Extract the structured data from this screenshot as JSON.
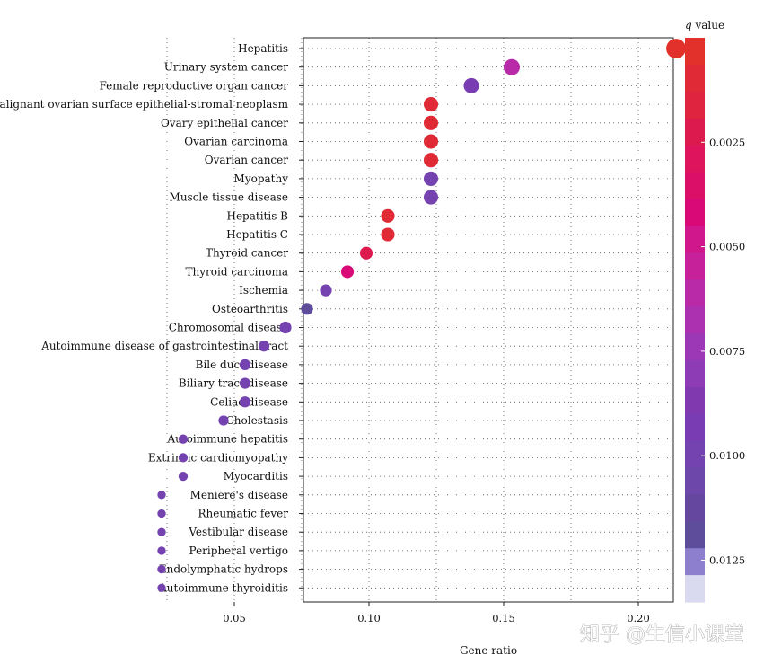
{
  "chart_data": {
    "type": "scatter",
    "subtype": "dot-plot",
    "xlabel": "Gene ratio",
    "xlim": [
      0.01,
      0.22
    ],
    "xticks": [
      0.05,
      0.1,
      0.15,
      0.2
    ],
    "xtick_labels": [
      "0.05",
      "0.10",
      "0.15",
      "0.20"
    ],
    "grid": true,
    "categories": [
      "Hepatitis",
      "Urinary system cancer",
      "Female reproductive organ cancer",
      "Malignant ovarian surface epithelial-stromal neoplasm",
      "Ovary epithelial cancer",
      "Ovarian carcinoma",
      "Ovarian cancer",
      "Myopathy",
      "Muscle tissue disease",
      "Hepatitis B",
      "Hepatitis C",
      "Thyroid cancer",
      "Thyroid carcinoma",
      "Ischemia",
      "Osteoarthritis",
      "Chromosomal disease",
      "Autoimmune disease of gastrointestinal tract",
      "Bile duct disease",
      "Biliary tract disease",
      "Celiac disease",
      "Cholestasis",
      "Autoimmune hepatitis",
      "Extrinsic cardiomyopathy",
      "Myocarditis",
      "Meniere's disease",
      "Rheumatic fever",
      "Vestibular disease",
      "Peripheral vertigo",
      "Endolymphatic hydrops",
      "Autoimmune thyroiditis"
    ],
    "gene_ratio": [
      0.214,
      0.153,
      0.138,
      0.123,
      0.123,
      0.123,
      0.123,
      0.123,
      0.123,
      0.107,
      0.107,
      0.099,
      0.092,
      0.084,
      0.077,
      0.069,
      0.061,
      0.054,
      0.054,
      0.054,
      0.046,
      0.031,
      0.031,
      0.031,
      0.023,
      0.023,
      0.023,
      0.023,
      0.023,
      0.023
    ],
    "q_value": [
      0.0003,
      0.0058,
      0.0092,
      0.0012,
      0.0012,
      0.0012,
      0.0012,
      0.0098,
      0.0098,
      0.0012,
      0.0012,
      0.002,
      0.004,
      0.0098,
      0.0118,
      0.0098,
      0.0098,
      0.0098,
      0.0098,
      0.0098,
      0.0098,
      0.0098,
      0.0098,
      0.0098,
      0.0098,
      0.0098,
      0.0098,
      0.0098,
      0.0098,
      0.0098
    ],
    "gene_count": [
      14,
      10,
      9,
      8,
      8,
      8,
      8,
      8,
      8,
      7,
      7,
      6,
      6,
      5,
      5,
      5,
      4,
      4,
      4,
      4,
      3,
      2,
      2,
      2,
      1,
      1,
      1,
      1,
      1,
      1
    ],
    "colorbar": {
      "title_symbol": "q",
      "title_rest": " value",
      "range": [
        0.0,
        0.0135
      ],
      "ticks": [
        0.0025,
        0.005,
        0.0075,
        0.01,
        0.0125
      ],
      "tick_labels": [
        "0.0025",
        "0.0050",
        "0.0075",
        "0.0100",
        "0.0125"
      ],
      "colors": [
        "#e2302a",
        "#e02b36",
        "#df2440",
        "#dd1a4e",
        "#de145c",
        "#dc0f68",
        "#d90a77",
        "#d0178c",
        "#c7209b",
        "#b92aa8",
        "#ab31b0",
        "#9c37b5",
        "#8e3bb6",
        "#8139b0",
        "#7a3cb2",
        "#7443b0",
        "#6e47ab",
        "#66479f",
        "#5e4d9a",
        "#8e7fce",
        "#d9d9ef"
      ]
    }
  },
  "watermark": "知乎 @生信小课堂"
}
